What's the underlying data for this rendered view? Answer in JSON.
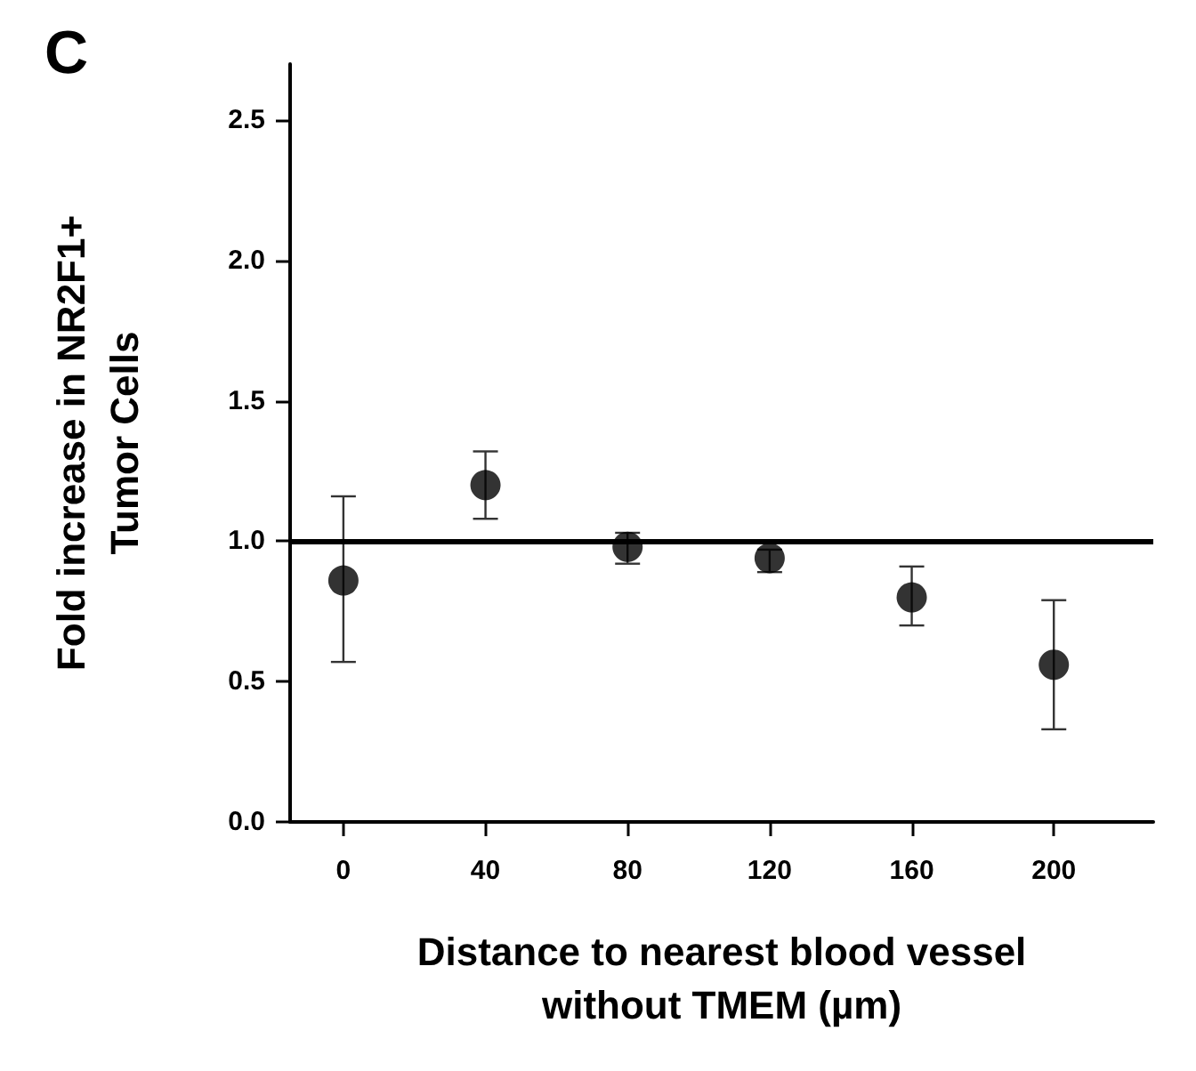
{
  "chart_data": {
    "type": "scatter",
    "title": "C",
    "xlabel": "Distance to nearest blood vessel without TMEM (µm)",
    "ylabel": "Fold increase in NR2F1+ Tumor Cells",
    "x": [
      0,
      40,
      80,
      120,
      160,
      200
    ],
    "values": [
      0.86,
      1.2,
      0.98,
      0.94,
      0.8,
      0.56
    ],
    "errors": [
      [
        0.57,
        1.16
      ],
      [
        1.08,
        1.32
      ],
      [
        0.92,
        1.03
      ],
      [
        0.89,
        0.97
      ],
      [
        0.7,
        0.91
      ],
      [
        0.33,
        0.79
      ]
    ],
    "color": "#000000",
    "xlim": [
      -15,
      228
    ],
    "xticks": [
      0,
      40,
      80,
      120,
      160,
      200
    ],
    "ylim": [
      0,
      2.7
    ],
    "yticks": [
      {
        "value": 0,
        "label": "0.0"
      },
      {
        "value": 0.5,
        "label": "0.5"
      },
      {
        "value": 1,
        "label": "1.0"
      },
      {
        "value": 1.5,
        "label": "1.5"
      },
      {
        "value": 2,
        "label": "2.0"
      },
      {
        "value": 2.5,
        "label": "2.5"
      }
    ],
    "ref_lines": [
      {
        "axis": "y",
        "value": 1,
        "label": null,
        "color": "#000000"
      }
    ],
    "grid": false,
    "marker": "circle"
  }
}
